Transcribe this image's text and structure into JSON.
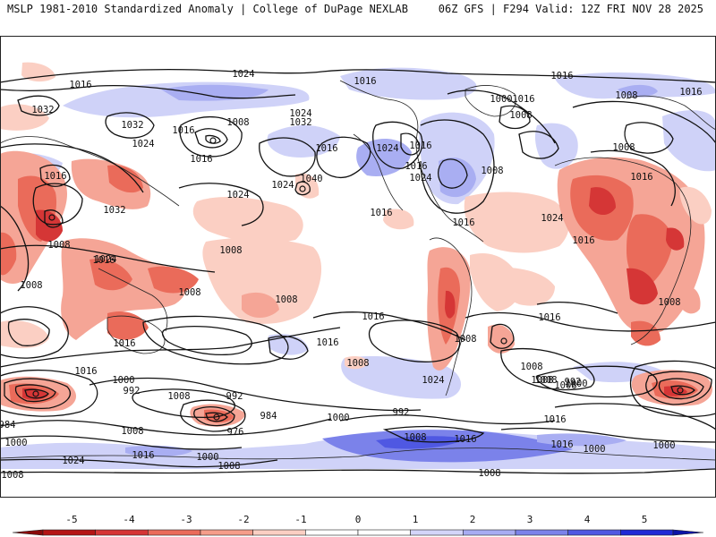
{
  "header": {
    "left": "MSLP 1981-2010 Standardized Anomaly | College of DuPage NEXLAB",
    "right": "06Z GFS | F294 Valid: 12Z FRI NOV 28 2025"
  },
  "colorbar": {
    "ticks": [
      "-5",
      "-4",
      "-3",
      "-2",
      "-1",
      "0",
      "1",
      "2",
      "3",
      "4",
      "5"
    ],
    "colors": [
      "#b41414",
      "#d53636",
      "#ea6b5a",
      "#f59d8a",
      "#fbcfc3",
      "#ffffff",
      "#d3d5f9",
      "#a7acf2",
      "#7b82ea",
      "#4f58e2",
      "#1f2bd6"
    ]
  },
  "isobars": [
    {
      "name": "isobar-label",
      "value": "1016"
    },
    {
      "name": "isobar-label",
      "value": "1024"
    },
    {
      "name": "isobar-label",
      "value": "1016"
    },
    {
      "name": "isobar-label",
      "value": "1016"
    },
    {
      "name": "isobar-label",
      "value": "1032"
    },
    {
      "name": "isobar-label",
      "value": "1032"
    },
    {
      "name": "isobar-label",
      "value": "1016"
    },
    {
      "name": "isobar-label",
      "value": "1008"
    },
    {
      "name": "isobar-label",
      "value": "1024"
    },
    {
      "name": "isobar-label",
      "value": "1032"
    },
    {
      "name": "isobar-label",
      "value": "1024"
    },
    {
      "name": "isobar-label",
      "value": "1016"
    },
    {
      "name": "isobar-label",
      "value": "1016"
    },
    {
      "name": "isobar-label",
      "value": "1024"
    },
    {
      "name": "isobar-label",
      "value": "1016"
    },
    {
      "name": "isobar-label",
      "value": "1016"
    },
    {
      "name": "isobar-label",
      "value": "1024"
    },
    {
      "name": "isobar-label",
      "value": "1008"
    },
    {
      "name": "isobar-label",
      "value": "1000"
    },
    {
      "name": "isobar-label",
      "value": "1016"
    },
    {
      "name": "isobar-label",
      "value": "1008"
    },
    {
      "name": "isobar-label",
      "value": "1008"
    },
    {
      "name": "isobar-label",
      "value": "1016"
    },
    {
      "name": "isobar-label",
      "value": "1008"
    },
    {
      "name": "isobar-label",
      "value": "1016"
    },
    {
      "name": "isobar-label",
      "value": "1032"
    },
    {
      "name": "isobar-label",
      "value": "1024"
    },
    {
      "name": "isobar-label",
      "value": "1024"
    },
    {
      "name": "isobar-label",
      "value": "1040"
    },
    {
      "name": "isobar-label",
      "value": "1016"
    },
    {
      "name": "isobar-label",
      "value": "1016"
    },
    {
      "name": "isobar-label",
      "value": "1024"
    },
    {
      "name": "isobar-label",
      "value": "1016"
    },
    {
      "name": "isobar-label",
      "value": "1016"
    },
    {
      "name": "isobar-label",
      "value": "1024"
    },
    {
      "name": "isobar-label",
      "value": "1016"
    },
    {
      "name": "isobar-label",
      "value": "1008"
    },
    {
      "name": "isobar-label",
      "value": "1008"
    },
    {
      "name": "isobar-label",
      "value": "1008"
    },
    {
      "name": "isobar-label",
      "value": "1008"
    },
    {
      "name": "isobar-label",
      "value": "1008"
    },
    {
      "name": "isobar-label",
      "value": "1016"
    },
    {
      "name": "isobar-label",
      "value": "1008"
    },
    {
      "name": "isobar-label",
      "value": "1016"
    },
    {
      "name": "isobar-label",
      "value": "1016"
    },
    {
      "name": "isobar-label",
      "value": "1016"
    },
    {
      "name": "isobar-label",
      "value": "1008"
    },
    {
      "name": "isobar-label",
      "value": "1008"
    },
    {
      "name": "isobar-label",
      "value": "1008"
    },
    {
      "name": "isobar-label",
      "value": "1016"
    },
    {
      "name": "isobar-label",
      "value": "1008"
    },
    {
      "name": "isobar-label",
      "value": "1008"
    },
    {
      "name": "isobar-label",
      "value": "1024"
    },
    {
      "name": "isobar-label",
      "value": "1016"
    },
    {
      "name": "isobar-label",
      "value": "1000"
    },
    {
      "name": "isobar-label",
      "value": "992"
    },
    {
      "name": "isobar-label",
      "value": "1008"
    },
    {
      "name": "isobar-label",
      "value": "992"
    },
    {
      "name": "isobar-label",
      "value": "984"
    },
    {
      "name": "isobar-label",
      "value": "976"
    },
    {
      "name": "isobar-label",
      "value": "1000"
    },
    {
      "name": "isobar-label",
      "value": "992"
    },
    {
      "name": "isobar-label",
      "value": "1008"
    },
    {
      "name": "isobar-label",
      "value": "1000"
    },
    {
      "name": "isobar-label",
      "value": "992"
    },
    {
      "name": "isobar-label",
      "value": "984"
    },
    {
      "name": "isobar-label",
      "value": "1008"
    },
    {
      "name": "isobar-label",
      "value": "1000"
    },
    {
      "name": "isobar-label",
      "value": "1024"
    },
    {
      "name": "isobar-label",
      "value": "1016"
    },
    {
      "name": "isobar-label",
      "value": "1016"
    },
    {
      "name": "isobar-label",
      "value": "1000"
    },
    {
      "name": "isobar-label",
      "value": "1008"
    },
    {
      "name": "isobar-label",
      "value": "1008"
    },
    {
      "name": "isobar-label",
      "value": "1000"
    },
    {
      "name": "isobar-label",
      "value": "1008"
    },
    {
      "name": "isobar-label",
      "value": "1016"
    },
    {
      "name": "isobar-label",
      "value": "1008"
    },
    {
      "name": "isobar-label",
      "value": "1000"
    }
  ]
}
